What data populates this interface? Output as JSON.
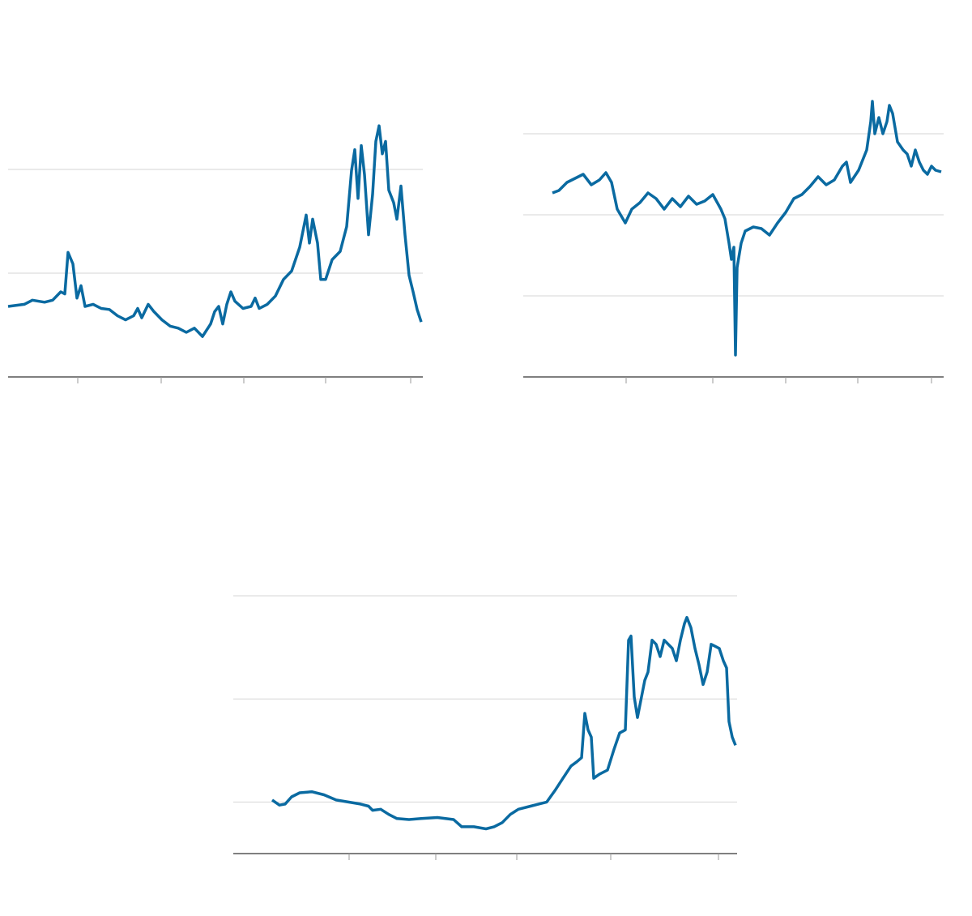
{
  "chart_data": [
    {
      "type": "line",
      "color": "#0a6aa1",
      "grid": true,
      "xlim": [
        0,
        512
      ],
      "xticks": [
        86,
        189,
        291,
        392,
        497
      ],
      "ylim": [
        0,
        2.5
      ],
      "yticks": [
        0,
        1,
        2
      ],
      "x": [
        0,
        20,
        30,
        45,
        55,
        65,
        70,
        74,
        80,
        85,
        90,
        95,
        105,
        115,
        125,
        135,
        145,
        155,
        160,
        165,
        173,
        180,
        190,
        200,
        210,
        220,
        230,
        240,
        250,
        255,
        260,
        265,
        270,
        275,
        280,
        290,
        300,
        305,
        310,
        320,
        330,
        340,
        350,
        360,
        368,
        372,
        376,
        382,
        386,
        392,
        400,
        410,
        418,
        424,
        428,
        432,
        436,
        440,
        445,
        450,
        454,
        458,
        462,
        466,
        470,
        476,
        480,
        485,
        490,
        495,
        500,
        505,
        510
      ],
      "values": [
        0.68,
        0.7,
        0.74,
        0.72,
        0.74,
        0.82,
        0.8,
        1.2,
        1.09,
        0.76,
        0.88,
        0.68,
        0.7,
        0.66,
        0.65,
        0.59,
        0.55,
        0.59,
        0.66,
        0.57,
        0.7,
        0.63,
        0.55,
        0.49,
        0.47,
        0.43,
        0.47,
        0.39,
        0.51,
        0.63,
        0.68,
        0.51,
        0.7,
        0.82,
        0.73,
        0.66,
        0.68,
        0.76,
        0.66,
        0.7,
        0.78,
        0.94,
        1.02,
        1.25,
        1.56,
        1.29,
        1.52,
        1.29,
        0.94,
        0.94,
        1.13,
        1.21,
        1.45,
        1.99,
        2.19,
        1.72,
        2.23,
        1.95,
        1.37,
        1.76,
        2.27,
        2.42,
        2.15,
        2.27,
        1.8,
        1.68,
        1.52,
        1.84,
        1.37,
        0.98,
        0.82,
        0.65,
        0.53
      ]
    },
    {
      "type": "line",
      "color": "#0a6aa1",
      "grid": true,
      "xlim": [
        0,
        519
      ],
      "xticks": [
        127,
        234,
        324,
        413,
        504
      ],
      "ylim": [
        0,
        3.5
      ],
      "yticks": [
        0,
        1,
        2,
        3
      ],
      "x": [
        36,
        44,
        54,
        64,
        74,
        84,
        94,
        102,
        109,
        116,
        126,
        134,
        144,
        154,
        164,
        174,
        184,
        194,
        204,
        214,
        224,
        234,
        244,
        249,
        254,
        257,
        260,
        262,
        264,
        269,
        274,
        284,
        294,
        304,
        314,
        324,
        334,
        344,
        354,
        364,
        374,
        384,
        394,
        399,
        404,
        414,
        424,
        429,
        431,
        434,
        439,
        444,
        449,
        452,
        456,
        462,
        469,
        474,
        479,
        484,
        489,
        494,
        499,
        504,
        509,
        516
      ],
      "values": [
        2.27,
        2.3,
        2.4,
        2.45,
        2.5,
        2.37,
        2.43,
        2.52,
        2.4,
        2.07,
        1.9,
        2.07,
        2.15,
        2.27,
        2.2,
        2.07,
        2.2,
        2.1,
        2.23,
        2.13,
        2.17,
        2.25,
        2.07,
        1.95,
        1.65,
        1.45,
        1.6,
        0.27,
        1.35,
        1.65,
        1.8,
        1.85,
        1.83,
        1.75,
        1.9,
        2.03,
        2.2,
        2.25,
        2.35,
        2.47,
        2.37,
        2.43,
        2.6,
        2.65,
        2.4,
        2.55,
        2.8,
        3.15,
        3.4,
        3.0,
        3.2,
        3.0,
        3.15,
        3.35,
        3.25,
        2.9,
        2.8,
        2.75,
        2.6,
        2.8,
        2.65,
        2.55,
        2.5,
        2.6,
        2.55,
        2.53
      ]
    },
    {
      "type": "line",
      "color": "#0a6aa1",
      "grid": true,
      "xlim": [
        0,
        622
      ],
      "xticks": [
        143,
        250,
        350,
        466,
        599
      ],
      "ylim": [
        0,
        2.5
      ],
      "yticks": [
        0.5,
        1.5,
        2.5
      ],
      "x": [
        48,
        57,
        64,
        72,
        82,
        97,
        112,
        127,
        142,
        157,
        167,
        172,
        182,
        192,
        202,
        217,
        232,
        252,
        272,
        282,
        297,
        312,
        322,
        332,
        342,
        352,
        367,
        377,
        387,
        397,
        407,
        417,
        424,
        430,
        434,
        438,
        442,
        445,
        452,
        462,
        470,
        477,
        484,
        488,
        491,
        495,
        499,
        504,
        508,
        512,
        517,
        522,
        527,
        532,
        542,
        547,
        552,
        557,
        560,
        565,
        570,
        575,
        580,
        585,
        590,
        595,
        600,
        605,
        609,
        612,
        616,
        620
      ],
      "values": [
        0.52,
        0.47,
        0.48,
        0.55,
        0.59,
        0.6,
        0.57,
        0.52,
        0.5,
        0.48,
        0.46,
        0.42,
        0.43,
        0.38,
        0.34,
        0.33,
        0.34,
        0.35,
        0.33,
        0.26,
        0.26,
        0.24,
        0.26,
        0.3,
        0.38,
        0.43,
        0.46,
        0.48,
        0.5,
        0.61,
        0.73,
        0.85,
        0.89,
        0.93,
        1.36,
        1.2,
        1.13,
        0.73,
        0.77,
        0.81,
        1.01,
        1.17,
        1.2,
        2.07,
        2.11,
        1.52,
        1.32,
        1.52,
        1.68,
        1.76,
        2.07,
        2.03,
        1.91,
        2.07,
        1.99,
        1.87,
        2.07,
        2.23,
        2.29,
        2.19,
        1.99,
        1.83,
        1.64,
        1.76,
        2.03,
        2.01,
        1.99,
        1.87,
        1.8,
        1.28,
        1.13,
        1.05
      ]
    }
  ]
}
